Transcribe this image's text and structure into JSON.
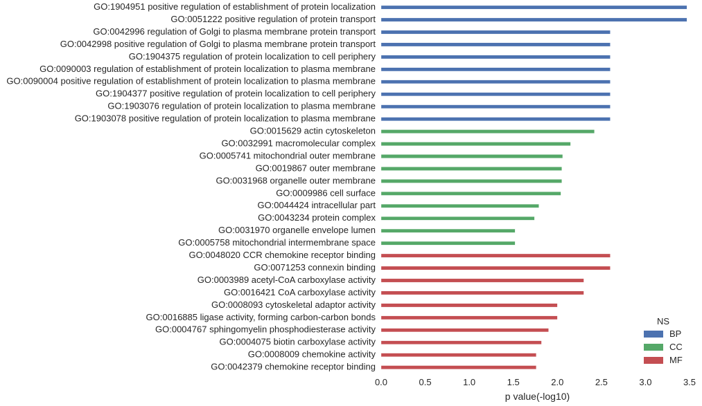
{
  "chart_data": {
    "type": "bar",
    "orientation": "horizontal",
    "xlabel": "p value(-log10)",
    "xlim": [
      0,
      3.5
    ],
    "xticks": [
      "0.0",
      "0.5",
      "1.0",
      "1.5",
      "2.0",
      "2.5",
      "3.0",
      "3.5"
    ],
    "grid": false,
    "legend": {
      "title": "NS",
      "placement": "bottom-right",
      "entries": [
        {
          "name": "BP",
          "color": "#4c72b0"
        },
        {
          "name": "CC",
          "color": "#55a868"
        },
        {
          "name": "MF",
          "color": "#c44e52"
        }
      ]
    },
    "categories": [
      {
        "label": "GO:1904951 positive regulation of establishment of protein localization",
        "value": 3.47,
        "ns": "BP"
      },
      {
        "label": "GO:0051222 positive regulation of protein transport",
        "value": 3.47,
        "ns": "BP"
      },
      {
        "label": "GO:0042996 regulation of Golgi to plasma membrane protein transport",
        "value": 2.6,
        "ns": "BP"
      },
      {
        "label": "GO:0042998 positive regulation of Golgi to plasma membrane protein transport",
        "value": 2.6,
        "ns": "BP"
      },
      {
        "label": "GO:1904375 regulation of protein localization to cell periphery",
        "value": 2.6,
        "ns": "BP"
      },
      {
        "label": "GO:0090003 regulation of establishment of protein localization to plasma membrane",
        "value": 2.6,
        "ns": "BP"
      },
      {
        "label": "GO:0090004 positive regulation of establishment of protein localization to plasma membrane",
        "value": 2.6,
        "ns": "BP"
      },
      {
        "label": "GO:1904377 positive regulation of protein localization to cell periphery",
        "value": 2.6,
        "ns": "BP"
      },
      {
        "label": "GO:1903076 regulation of protein localization to plasma membrane",
        "value": 2.6,
        "ns": "BP"
      },
      {
        "label": "GO:1903078 positive regulation of protein localization to plasma membrane",
        "value": 2.6,
        "ns": "BP"
      },
      {
        "label": "GO:0015629 actin cytoskeleton",
        "value": 2.42,
        "ns": "CC"
      },
      {
        "label": "GO:0032991 macromolecular complex",
        "value": 2.15,
        "ns": "CC"
      },
      {
        "label": "GO:0005741 mitochondrial outer membrane",
        "value": 2.06,
        "ns": "CC"
      },
      {
        "label": "GO:0019867 outer membrane",
        "value": 2.05,
        "ns": "CC"
      },
      {
        "label": "GO:0031968 organelle outer membrane",
        "value": 2.05,
        "ns": "CC"
      },
      {
        "label": "GO:0009986 cell surface",
        "value": 2.04,
        "ns": "CC"
      },
      {
        "label": "GO:0044424 intracellular part",
        "value": 1.79,
        "ns": "CC"
      },
      {
        "label": "GO:0043234 protein complex",
        "value": 1.74,
        "ns": "CC"
      },
      {
        "label": "GO:0031970 organelle envelope lumen",
        "value": 1.52,
        "ns": "CC"
      },
      {
        "label": "GO:0005758 mitochondrial intermembrane space",
        "value": 1.52,
        "ns": "CC"
      },
      {
        "label": "GO:0048020 CCR chemokine receptor binding",
        "value": 2.6,
        "ns": "MF"
      },
      {
        "label": "GO:0071253 connexin binding",
        "value": 2.6,
        "ns": "MF"
      },
      {
        "label": "GO:0003989 acetyl-CoA carboxylase activity",
        "value": 2.3,
        "ns": "MF"
      },
      {
        "label": "GO:0016421 CoA carboxylase activity",
        "value": 2.3,
        "ns": "MF"
      },
      {
        "label": "GO:0008093 cytoskeletal adaptor activity",
        "value": 2.0,
        "ns": "MF"
      },
      {
        "label": "GO:0016885 ligase activity, forming carbon-carbon bonds",
        "value": 2.0,
        "ns": "MF"
      },
      {
        "label": "GO:0004767 sphingomyelin phosphodiesterase activity",
        "value": 1.9,
        "ns": "MF"
      },
      {
        "label": "GO:0004075 biotin carboxylase activity",
        "value": 1.82,
        "ns": "MF"
      },
      {
        "label": "GO:0008009 chemokine activity",
        "value": 1.76,
        "ns": "MF"
      },
      {
        "label": "GO:0042379 chemokine receptor binding",
        "value": 1.76,
        "ns": "MF"
      }
    ]
  }
}
